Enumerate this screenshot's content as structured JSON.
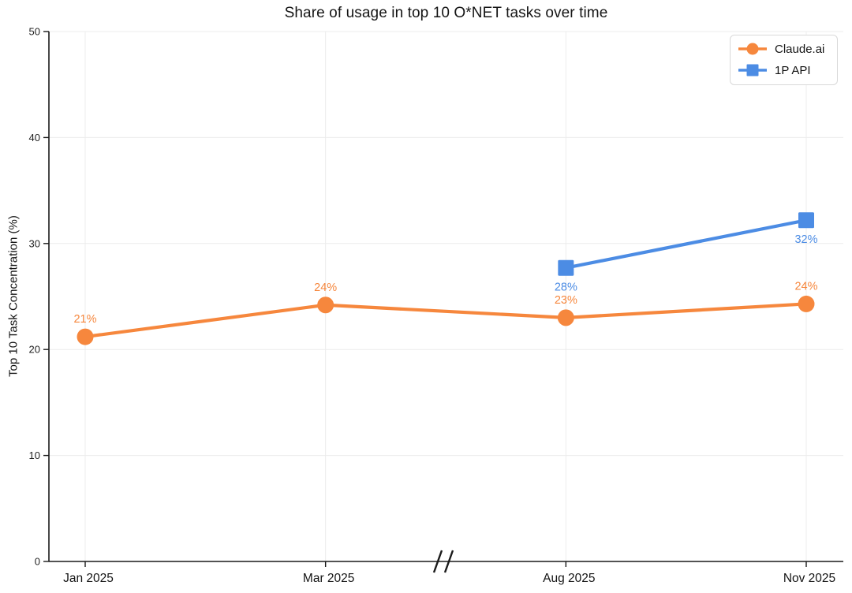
{
  "chart_data": {
    "type": "line",
    "title": "Share of usage in top 10 O*NET tasks over time",
    "xlabel": "",
    "ylabel": "Top 10 Task Concentration (%)",
    "categories": [
      "Jan 2025",
      "Mar 2025",
      "Aug 2025",
      "Nov 2025"
    ],
    "ylim": [
      0,
      50
    ],
    "yticks": [
      0,
      10,
      20,
      30,
      40,
      50
    ],
    "grid": true,
    "legend_position": "top-right",
    "axis_break": {
      "between": [
        "Mar 2025",
        "Aug 2025"
      ],
      "symbol": "//"
    },
    "axis_color": "#1a1a1a",
    "grid_color": "#ececec",
    "series": [
      {
        "name": "Claude.ai",
        "color": "#F6873D",
        "marker": "circle",
        "label_side": "above",
        "values": [
          21.2,
          24.2,
          23.0,
          24.3
        ],
        "point_labels": [
          "21%",
          "24%",
          "23%",
          "24%"
        ]
      },
      {
        "name": "1P API",
        "color": "#4C8CE4",
        "marker": "square",
        "label_side": "below",
        "values": [
          null,
          null,
          27.7,
          32.2
        ],
        "point_labels": [
          null,
          null,
          "28%",
          "32%"
        ]
      }
    ]
  }
}
